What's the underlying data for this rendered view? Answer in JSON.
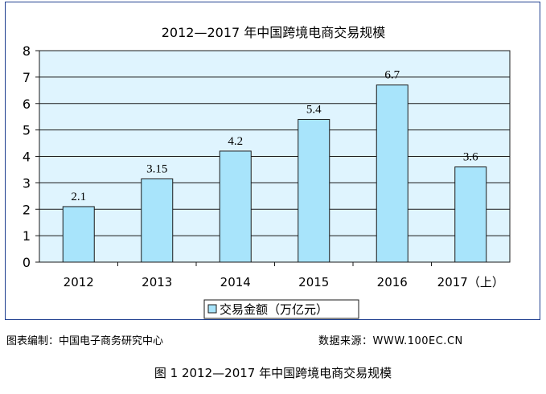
{
  "chart_data": {
    "type": "bar",
    "title": "2012—2017 年中国跨境电商交易规模",
    "categories": [
      "2012",
      "2013",
      "2014",
      "2015",
      "2016",
      "2017（上）"
    ],
    "series": [
      {
        "name": "交易金额（万亿元）",
        "values": [
          2.1,
          3.15,
          4.2,
          5.4,
          6.7,
          3.6
        ]
      }
    ],
    "data_labels": [
      "2.1",
      "3.15",
      "4.2",
      "5.4",
      "6.7",
      "3.6"
    ],
    "ylim": [
      0,
      8
    ],
    "yticks": [
      "0",
      "1",
      "2",
      "3",
      "4",
      "5",
      "6",
      "7",
      "8"
    ],
    "grid": true,
    "legend_position": "bottom",
    "colors": {
      "bar_fill": "#a8e4fb",
      "bar_stroke": "#1a1a1a",
      "plot_bg": "#dff4fe",
      "grid": "#1a1a1a",
      "frame": "#1f3f8f"
    }
  },
  "footer": {
    "source_left": "图表编制：中国电子商务研究中心",
    "source_right": "数据来源：WWW.100EC.CN"
  },
  "caption": "图 1  2012—2017 年中国跨境电商交易规模"
}
